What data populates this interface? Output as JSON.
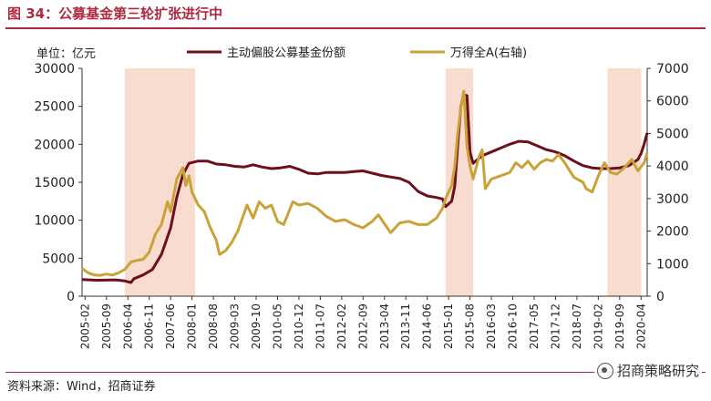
{
  "header": {
    "title": "图 34：公募基金第三轮扩张进行中"
  },
  "footer": {
    "source": "资料来源：Wind，招商证券",
    "watermark": "招商策略研究"
  },
  "chart_data": {
    "type": "line",
    "unit_label": "单位：亿元",
    "left_axis": {
      "ylim": [
        0,
        30000
      ],
      "ticks": [
        "0",
        "5000",
        "10000",
        "15000",
        "20000",
        "25000",
        "30000"
      ]
    },
    "right_axis": {
      "ylim": [
        0,
        7000
      ],
      "ticks": [
        "0",
        "1000",
        "2000",
        "3000",
        "4000",
        "5000",
        "6000",
        "7000"
      ]
    },
    "x_ticks": [
      "2005-02",
      "2005-09",
      "2006-04",
      "2006-11",
      "2007-06",
      "2008-01",
      "2008-08",
      "2009-03",
      "2009-10",
      "2010-05",
      "2010-12",
      "2011-07",
      "2012-02",
      "2012-09",
      "2013-04",
      "2013-11",
      "2014-06",
      "2015-01",
      "2015-08",
      "2016-03",
      "2016-10",
      "2017-05",
      "2017-12",
      "2018-07",
      "2019-02",
      "2019-09",
      "2020-04"
    ],
    "x_range": [
      "2005-01",
      "2020-06"
    ],
    "shaded_periods": [
      {
        "start": "2006-03",
        "end": "2008-02"
      },
      {
        "start": "2014-12",
        "end": "2015-09"
      },
      {
        "start": "2019-05",
        "end": "2020-04"
      }
    ],
    "series": [
      {
        "name": "主动偏股公募基金份额",
        "axis": "left",
        "color": "#6e0f1e",
        "points": [
          [
            "2005-01",
            2200
          ],
          [
            "2005-06",
            2100
          ],
          [
            "2005-12",
            2150
          ],
          [
            "2006-03",
            2000
          ],
          [
            "2006-05",
            1800
          ],
          [
            "2006-06",
            2300
          ],
          [
            "2006-09",
            2800
          ],
          [
            "2006-12",
            3500
          ],
          [
            "2007-03",
            5500
          ],
          [
            "2007-06",
            9000
          ],
          [
            "2007-08",
            13000
          ],
          [
            "2007-10",
            16000
          ],
          [
            "2007-12",
            17500
          ],
          [
            "2008-03",
            17800
          ],
          [
            "2008-06",
            17800
          ],
          [
            "2008-09",
            17400
          ],
          [
            "2008-12",
            17300
          ],
          [
            "2009-03",
            17100
          ],
          [
            "2009-06",
            17000
          ],
          [
            "2009-09",
            17300
          ],
          [
            "2009-12",
            17000
          ],
          [
            "2010-03",
            16800
          ],
          [
            "2010-06",
            16900
          ],
          [
            "2010-09",
            17100
          ],
          [
            "2010-12",
            16700
          ],
          [
            "2011-03",
            16200
          ],
          [
            "2011-06",
            16100
          ],
          [
            "2011-09",
            16300
          ],
          [
            "2011-12",
            16300
          ],
          [
            "2012-03",
            16300
          ],
          [
            "2012-06",
            16400
          ],
          [
            "2012-09",
            16500
          ],
          [
            "2012-12",
            16200
          ],
          [
            "2013-03",
            15900
          ],
          [
            "2013-06",
            15700
          ],
          [
            "2013-09",
            15500
          ],
          [
            "2013-12",
            15000
          ],
          [
            "2014-03",
            13800
          ],
          [
            "2014-06",
            13200
          ],
          [
            "2014-09",
            13000
          ],
          [
            "2014-11",
            12800
          ],
          [
            "2014-12",
            11800
          ],
          [
            "2015-02",
            12500
          ],
          [
            "2015-03",
            14500
          ],
          [
            "2015-04",
            20000
          ],
          [
            "2015-05",
            25000
          ],
          [
            "2015-06",
            26500
          ],
          [
            "2015-07",
            26400
          ],
          [
            "2015-08",
            19000
          ],
          [
            "2015-09",
            17500
          ],
          [
            "2015-12",
            18500
          ],
          [
            "2016-03",
            19000
          ],
          [
            "2016-06",
            19500
          ],
          [
            "2016-09",
            20000
          ],
          [
            "2016-12",
            20400
          ],
          [
            "2017-03",
            20300
          ],
          [
            "2017-06",
            19800
          ],
          [
            "2017-09",
            19300
          ],
          [
            "2017-12",
            19000
          ],
          [
            "2018-03",
            18500
          ],
          [
            "2018-06",
            17800
          ],
          [
            "2018-09",
            17200
          ],
          [
            "2018-12",
            16900
          ],
          [
            "2019-03",
            16800
          ],
          [
            "2019-06",
            16800
          ],
          [
            "2019-09",
            16900
          ],
          [
            "2019-12",
            17200
          ],
          [
            "2020-03",
            18000
          ],
          [
            "2020-04",
            18800
          ],
          [
            "2020-05",
            20000
          ],
          [
            "2020-06",
            21500
          ]
        ]
      },
      {
        "name": "万得全A(右轴)",
        "axis": "right",
        "color": "#c9a238",
        "points": [
          [
            "2005-01",
            850
          ],
          [
            "2005-03",
            720
          ],
          [
            "2005-05",
            650
          ],
          [
            "2005-07",
            640
          ],
          [
            "2005-09",
            680
          ],
          [
            "2005-11",
            650
          ],
          [
            "2006-01",
            720
          ],
          [
            "2006-03",
            820
          ],
          [
            "2006-05",
            1050
          ],
          [
            "2006-07",
            1100
          ],
          [
            "2006-09",
            1130
          ],
          [
            "2006-11",
            1350
          ],
          [
            "2007-01",
            1900
          ],
          [
            "2007-03",
            2200
          ],
          [
            "2007-05",
            2900
          ],
          [
            "2007-06",
            2600
          ],
          [
            "2007-08",
            3600
          ],
          [
            "2007-10",
            3950
          ],
          [
            "2007-11",
            3400
          ],
          [
            "2007-12",
            3700
          ],
          [
            "2008-01",
            3200
          ],
          [
            "2008-03",
            2800
          ],
          [
            "2008-05",
            2600
          ],
          [
            "2008-07",
            2100
          ],
          [
            "2008-09",
            1700
          ],
          [
            "2008-10",
            1280
          ],
          [
            "2008-12",
            1400
          ],
          [
            "2009-02",
            1650
          ],
          [
            "2009-04",
            2000
          ],
          [
            "2009-07",
            2800
          ],
          [
            "2009-09",
            2400
          ],
          [
            "2009-11",
            2900
          ],
          [
            "2010-01",
            2700
          ],
          [
            "2010-03",
            2800
          ],
          [
            "2010-05",
            2300
          ],
          [
            "2010-07",
            2200
          ],
          [
            "2010-10",
            2900
          ],
          [
            "2010-12",
            2800
          ],
          [
            "2011-03",
            2850
          ],
          [
            "2011-06",
            2700
          ],
          [
            "2011-09",
            2450
          ],
          [
            "2011-12",
            2300
          ],
          [
            "2012-03",
            2350
          ],
          [
            "2012-06",
            2200
          ],
          [
            "2012-09",
            2100
          ],
          [
            "2012-12",
            2300
          ],
          [
            "2013-02",
            2500
          ],
          [
            "2013-06",
            1950
          ],
          [
            "2013-09",
            2250
          ],
          [
            "2013-12",
            2300
          ],
          [
            "2014-03",
            2200
          ],
          [
            "2014-06",
            2200
          ],
          [
            "2014-09",
            2400
          ],
          [
            "2014-11",
            2700
          ],
          [
            "2014-12",
            3000
          ],
          [
            "2015-02",
            3400
          ],
          [
            "2015-03",
            4000
          ],
          [
            "2015-04",
            5000
          ],
          [
            "2015-05",
            5800
          ],
          [
            "2015-06",
            6300
          ],
          [
            "2015-07",
            4600
          ],
          [
            "2015-08",
            4000
          ],
          [
            "2015-09",
            3600
          ],
          [
            "2015-11",
            4300
          ],
          [
            "2015-12",
            4500
          ],
          [
            "2016-01",
            3300
          ],
          [
            "2016-03",
            3600
          ],
          [
            "2016-06",
            3700
          ],
          [
            "2016-09",
            3800
          ],
          [
            "2016-11",
            4100
          ],
          [
            "2017-01",
            3950
          ],
          [
            "2017-03",
            4150
          ],
          [
            "2017-05",
            3900
          ],
          [
            "2017-07",
            4100
          ],
          [
            "2017-09",
            4200
          ],
          [
            "2017-11",
            4150
          ],
          [
            "2018-01",
            4350
          ],
          [
            "2018-03",
            4100
          ],
          [
            "2018-06",
            3650
          ],
          [
            "2018-09",
            3500
          ],
          [
            "2018-10",
            3300
          ],
          [
            "2018-12",
            3200
          ],
          [
            "2019-02",
            3700
          ],
          [
            "2019-04",
            4100
          ],
          [
            "2019-06",
            3800
          ],
          [
            "2019-08",
            3750
          ],
          [
            "2019-10",
            3900
          ],
          [
            "2019-12",
            4100
          ],
          [
            "2020-01",
            4200
          ],
          [
            "2020-03",
            3850
          ],
          [
            "2020-05",
            4100
          ],
          [
            "2020-06",
            4400
          ]
        ]
      }
    ]
  }
}
